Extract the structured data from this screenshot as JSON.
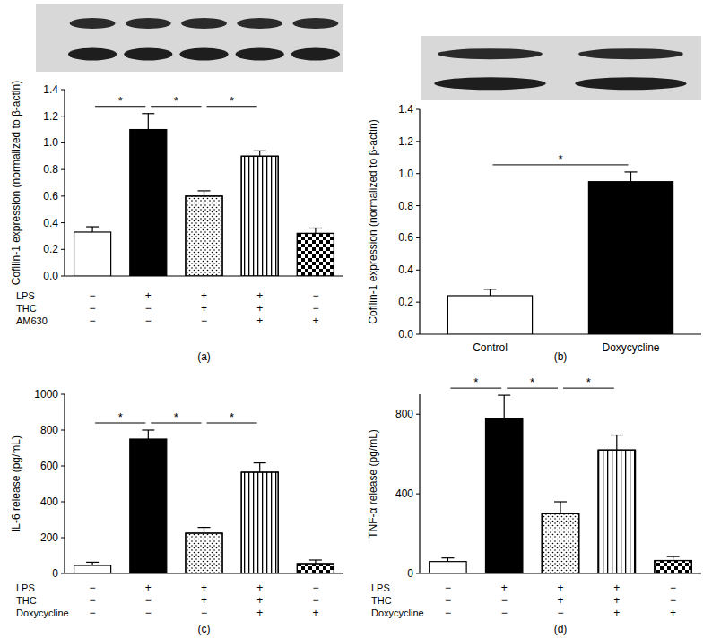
{
  "chart_data": [
    {
      "type": "bar",
      "label": "(a)",
      "y_label": "Cofilin-1 expression (normalized to β-actin)",
      "categories": [
        null,
        null,
        null,
        null,
        null
      ],
      "values": [
        0.33,
        1.1,
        0.6,
        0.9,
        0.32
      ],
      "errors": [
        0.04,
        0.12,
        0.04,
        0.04,
        0.04
      ],
      "colors": [
        "#ffffff",
        "#000000",
        "#ffffff",
        "#ffffff",
        "#ffffff"
      ],
      "ylim": [
        0,
        1.4
      ],
      "yticks": [
        {
          "value": 0,
          "label": "0.0"
        },
        0.2,
        0.4,
        0.6,
        0.8,
        {
          "value": 1,
          "label": "1.0"
        },
        1.2,
        1.4
      ],
      "conditions": [
        {
          "name": "LPS",
          "signs": [
            "−",
            "+",
            "+",
            "+",
            "−"
          ]
        },
        {
          "name": "THC",
          "signs": [
            "−",
            "−",
            "+",
            "+",
            "−"
          ]
        },
        {
          "name": "AM630",
          "signs": [
            "−",
            "−",
            "−",
            "+",
            "+"
          ]
        }
      ],
      "significance": [
        {
          "from": 0,
          "to": 1,
          "label": "*"
        },
        {
          "from": 1,
          "to": 2,
          "label": "*"
        },
        {
          "from": 2,
          "to": 3,
          "label": "*"
        }
      ]
    },
    {
      "type": "bar",
      "label": "(b)",
      "y_label": "Cofilin-1 expression (normalized to β-actin)",
      "categories": [
        "Control",
        "Doxycycline"
      ],
      "values": [
        0.24,
        0.95
      ],
      "errors": [
        0.04,
        0.06
      ],
      "colors": [
        "#ffffff",
        "#000000"
      ],
      "ylim": [
        0,
        1.4
      ],
      "yticks": [
        {
          "value": 0,
          "label": "0.0"
        },
        0.2,
        0.4,
        0.6,
        0.8,
        {
          "value": 1,
          "label": "1.0"
        },
        1.2,
        1.4
      ],
      "significance": [
        {
          "from": 0,
          "to": 1,
          "label": "*"
        }
      ]
    },
    {
      "type": "bar",
      "label": "(c)",
      "y_label": "IL-6 release (pg/mL)",
      "categories": [
        null,
        null,
        null,
        null,
        null
      ],
      "values": [
        45,
        750,
        225,
        565,
        55
      ],
      "errors": [
        18,
        50,
        32,
        52,
        20
      ],
      "colors": [
        "#ffffff",
        "#000000",
        "#ffffff",
        "#ffffff",
        "#ffffff"
      ],
      "ylim": [
        0,
        1000
      ],
      "yticks": [
        0,
        200,
        400,
        600,
        800,
        1000
      ],
      "conditions": [
        {
          "name": "LPS",
          "signs": [
            "−",
            "+",
            "+",
            "+",
            "−"
          ]
        },
        {
          "name": "THC",
          "signs": [
            "−",
            "−",
            "+",
            "+",
            "−"
          ]
        },
        {
          "name": "Doxycycline",
          "signs": [
            "−",
            "−",
            "−",
            "+",
            "+"
          ]
        }
      ],
      "significance": [
        {
          "from": 0,
          "to": 1,
          "label": "*"
        },
        {
          "from": 1,
          "to": 2,
          "label": "*"
        },
        {
          "from": 2,
          "to": 3,
          "label": "*"
        }
      ]
    },
    {
      "type": "bar",
      "label": "(d)",
      "y_label": "TNF-α release (pg/mL)",
      "categories": [
        null,
        null,
        null,
        null,
        null
      ],
      "values": [
        60,
        780,
        300,
        620,
        65
      ],
      "errors": [
        18,
        115,
        60,
        75,
        20
      ],
      "colors": [
        "#ffffff",
        "#000000",
        "#ffffff",
        "#ffffff",
        "#ffffff"
      ],
      "ylim": [
        0,
        900
      ],
      "yticks": [
        0,
        400,
        800
      ],
      "conditions": [
        {
          "name": "LPS",
          "signs": [
            "−",
            "+",
            "+",
            "+",
            "−"
          ]
        },
        {
          "name": "THC",
          "signs": [
            "−",
            "−",
            "+",
            "+",
            "−"
          ]
        },
        {
          "name": "Doxycycline",
          "signs": [
            "−",
            "−",
            "−",
            "+",
            "+"
          ]
        }
      ],
      "significance": [
        {
          "from": 0,
          "to": 1,
          "label": "*"
        },
        {
          "from": 1,
          "to": 2,
          "label": "*"
        },
        {
          "from": 2,
          "to": 3,
          "label": "*"
        }
      ]
    }
  ]
}
